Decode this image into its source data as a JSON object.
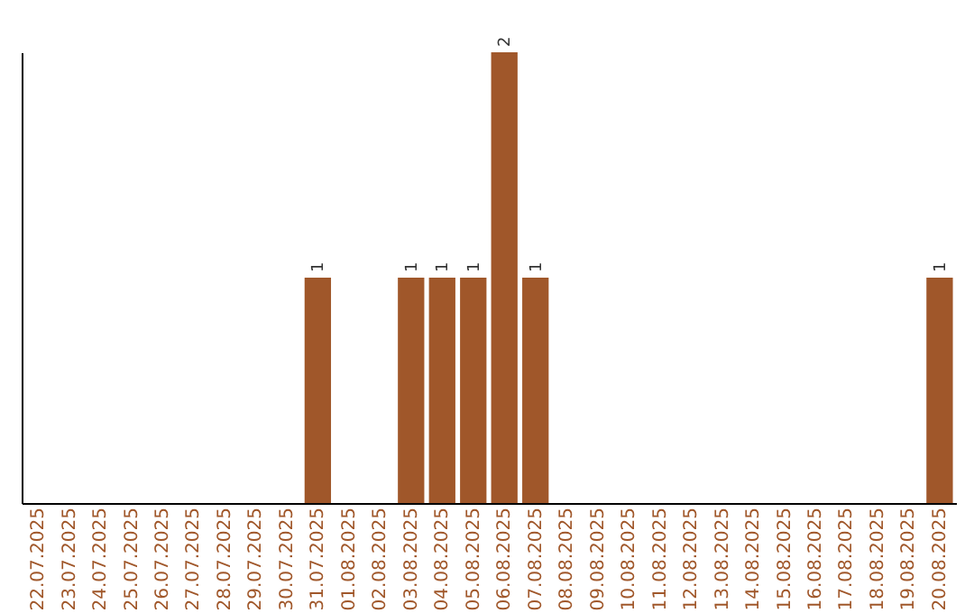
{
  "chart_data": {
    "type": "bar",
    "categories": [
      "22.07.2025",
      "23.07.2025",
      "24.07.2025",
      "25.07.2025",
      "26.07.2025",
      "27.07.2025",
      "28.07.2025",
      "29.07.2025",
      "30.07.2025",
      "31.07.2025",
      "01.08.2025",
      "02.08.2025",
      "03.08.2025",
      "04.08.2025",
      "05.08.2025",
      "06.08.2025",
      "07.08.2025",
      "08.08.2025",
      "09.08.2025",
      "10.08.2025",
      "11.08.2025",
      "12.08.2025",
      "13.08.2025",
      "14.08.2025",
      "15.08.2025",
      "16.08.2025",
      "17.08.2025",
      "18.08.2025",
      "19.08.2025",
      "20.08.2025"
    ],
    "values": [
      0,
      0,
      0,
      0,
      0,
      0,
      0,
      0,
      0,
      1,
      0,
      0,
      1,
      1,
      1,
      2,
      1,
      0,
      0,
      0,
      0,
      0,
      0,
      0,
      0,
      0,
      0,
      0,
      0,
      1
    ],
    "value_labels": [
      null,
      null,
      null,
      null,
      null,
      null,
      null,
      null,
      null,
      "1",
      null,
      null,
      "1",
      "1",
      "1",
      "2",
      "1",
      null,
      null,
      null,
      null,
      null,
      null,
      null,
      null,
      null,
      null,
      null,
      null,
      "1"
    ],
    "color": "#a0572a",
    "grid": false,
    "tick_labels": "x"
  }
}
